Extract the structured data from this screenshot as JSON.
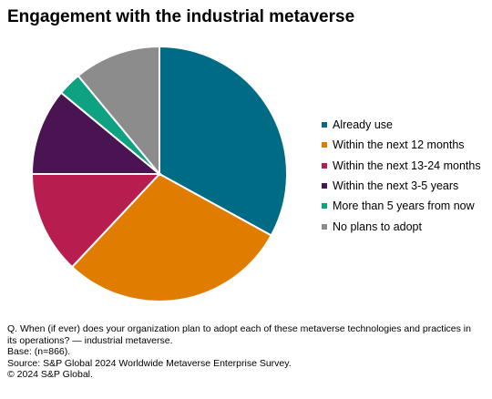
{
  "title": "Engagement with the industrial metaverse",
  "chart_data": {
    "type": "pie",
    "slices": [
      {
        "label": "Already use",
        "value": 33,
        "color": "#006b84"
      },
      {
        "label": "Within the next 12 months",
        "value": 29,
        "color": "#e07c00"
      },
      {
        "label": "Within the next 13-24 months",
        "value": 13,
        "color": "#b81d4f"
      },
      {
        "label": "Within the next 3-5 years",
        "value": 11,
        "color": "#4a1452"
      },
      {
        "label": "More than 5 years from now",
        "value": 3,
        "color": "#0ea282"
      },
      {
        "label": "No plans to adopt",
        "value": 11,
        "color": "#8c8c8c"
      }
    ],
    "legend_position": "right"
  },
  "notes": {
    "question": "Q. When (if ever) does your organization plan to adopt each of these metaverse technologies and practices in its operations? — industrial metaverse.",
    "base": "Base: (n=866).",
    "source": "Source: S&P Global 2024 Worldwide Metaverse Enterprise Survey.",
    "copyright": "© 2024 S&P Global."
  }
}
